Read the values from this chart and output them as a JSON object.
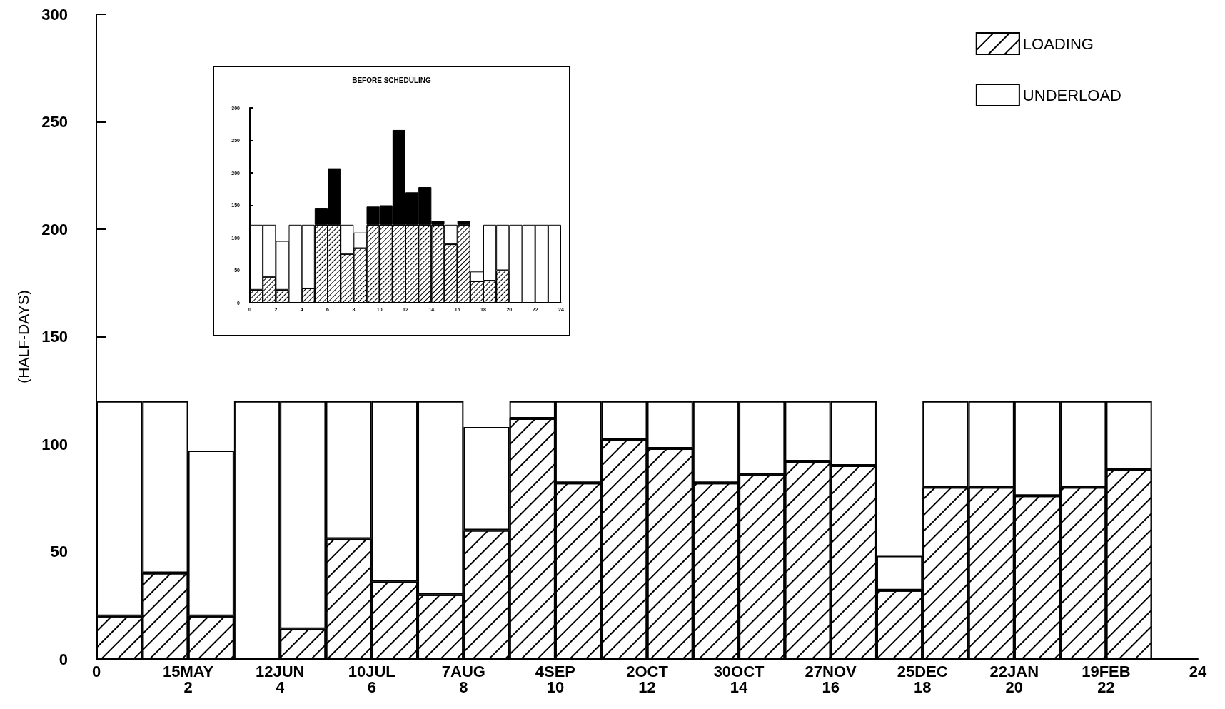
{
  "chart_data": [
    {
      "type": "bar",
      "stacked": true,
      "ylabel": "(HALF-DAYS)",
      "xlim": [
        0,
        24
      ],
      "xticks": [
        0,
        {
          "value": 2,
          "label": "15MAY\n2"
        },
        {
          "value": 4,
          "label": "12JUN\n4"
        },
        {
          "value": 6,
          "label": "10JUL\n6"
        },
        {
          "value": 8,
          "label": "7AUG\n8"
        },
        {
          "value": 10,
          "label": "4SEP\n10"
        },
        {
          "value": 12,
          "label": "2OCT\n12"
        },
        {
          "value": 14,
          "label": "30OCT\n14"
        },
        {
          "value": 16,
          "label": "27NOV\n16"
        },
        {
          "value": 18,
          "label": "25DEC\n18"
        },
        {
          "value": 20,
          "label": "22JAN\n20"
        },
        {
          "value": 22,
          "label": "19FEB\n22"
        },
        24
      ],
      "ylim": [
        0,
        300
      ],
      "yticks": [
        0,
        50,
        100,
        150,
        200,
        250,
        300
      ],
      "x": [
        0.5,
        1.5,
        2.5,
        3.5,
        4.5,
        5.5,
        6.5,
        7.5,
        8.5,
        9.5,
        10.5,
        11.5,
        12.5,
        13.5,
        14.5,
        15.5,
        16.5,
        17.5,
        18.5,
        19.5,
        20.5,
        21.5,
        22.5
      ],
      "legend": "top right",
      "grid": false,
      "series": [
        {
          "name": "LOADING",
          "color": "#000000",
          "values": [
            20,
            40,
            20,
            0,
            14,
            56,
            36,
            30,
            60,
            112,
            82,
            102,
            98,
            82,
            86,
            92,
            90,
            32,
            80,
            80,
            76,
            80,
            88
          ]
        },
        {
          "name": "UNDERLOAD",
          "color": "#ffffff",
          "values": [
            100,
            80,
            77,
            120,
            106,
            64,
            84,
            90,
            48,
            8,
            38,
            18,
            22,
            38,
            34,
            28,
            30,
            16,
            40,
            40,
            44,
            40,
            32
          ]
        }
      ]
    },
    {
      "type": "bar",
      "stacked": true,
      "title": "BEFORE SCHEDULING",
      "xlim": [
        0,
        24
      ],
      "xticks": [
        0,
        2,
        4,
        6,
        8,
        10,
        12,
        14,
        16,
        18,
        20,
        22,
        24
      ],
      "ylim": [
        0,
        300
      ],
      "yticks": [
        0,
        50,
        100,
        150,
        200,
        250,
        300
      ],
      "x": [
        0.5,
        1.5,
        2.5,
        3.5,
        4.5,
        5.5,
        6.5,
        7.5,
        8.5,
        9.5,
        10.5,
        11.5,
        12.5,
        13.5,
        14.5,
        15.5,
        16.5,
        17.5,
        18.5,
        19.5,
        20.5,
        21.5,
        22.5,
        23.5
      ],
      "grid": false,
      "series": [
        {
          "color": "#000000",
          "values": [
            20,
            40,
            20,
            0,
            22,
            120,
            120,
            75,
            84,
            120,
            120,
            120,
            120,
            120,
            120,
            90,
            120,
            33,
            34,
            50,
            0,
            0,
            0,
            0
          ]
        },
        {
          "color": "#000000",
          "values": [
            0,
            0,
            0,
            0,
            0,
            25,
            87,
            0,
            0,
            28,
            30,
            146,
            50,
            58,
            6,
            0,
            6,
            0,
            0,
            0,
            0,
            0,
            0,
            0
          ]
        },
        {
          "color": "#ffffff",
          "values": [
            100,
            80,
            75,
            120,
            98,
            0,
            0,
            45,
            24,
            0,
            0,
            0,
            0,
            0,
            0,
            30,
            0,
            15,
            86,
            70,
            120,
            120,
            120,
            120
          ]
        }
      ]
    }
  ]
}
